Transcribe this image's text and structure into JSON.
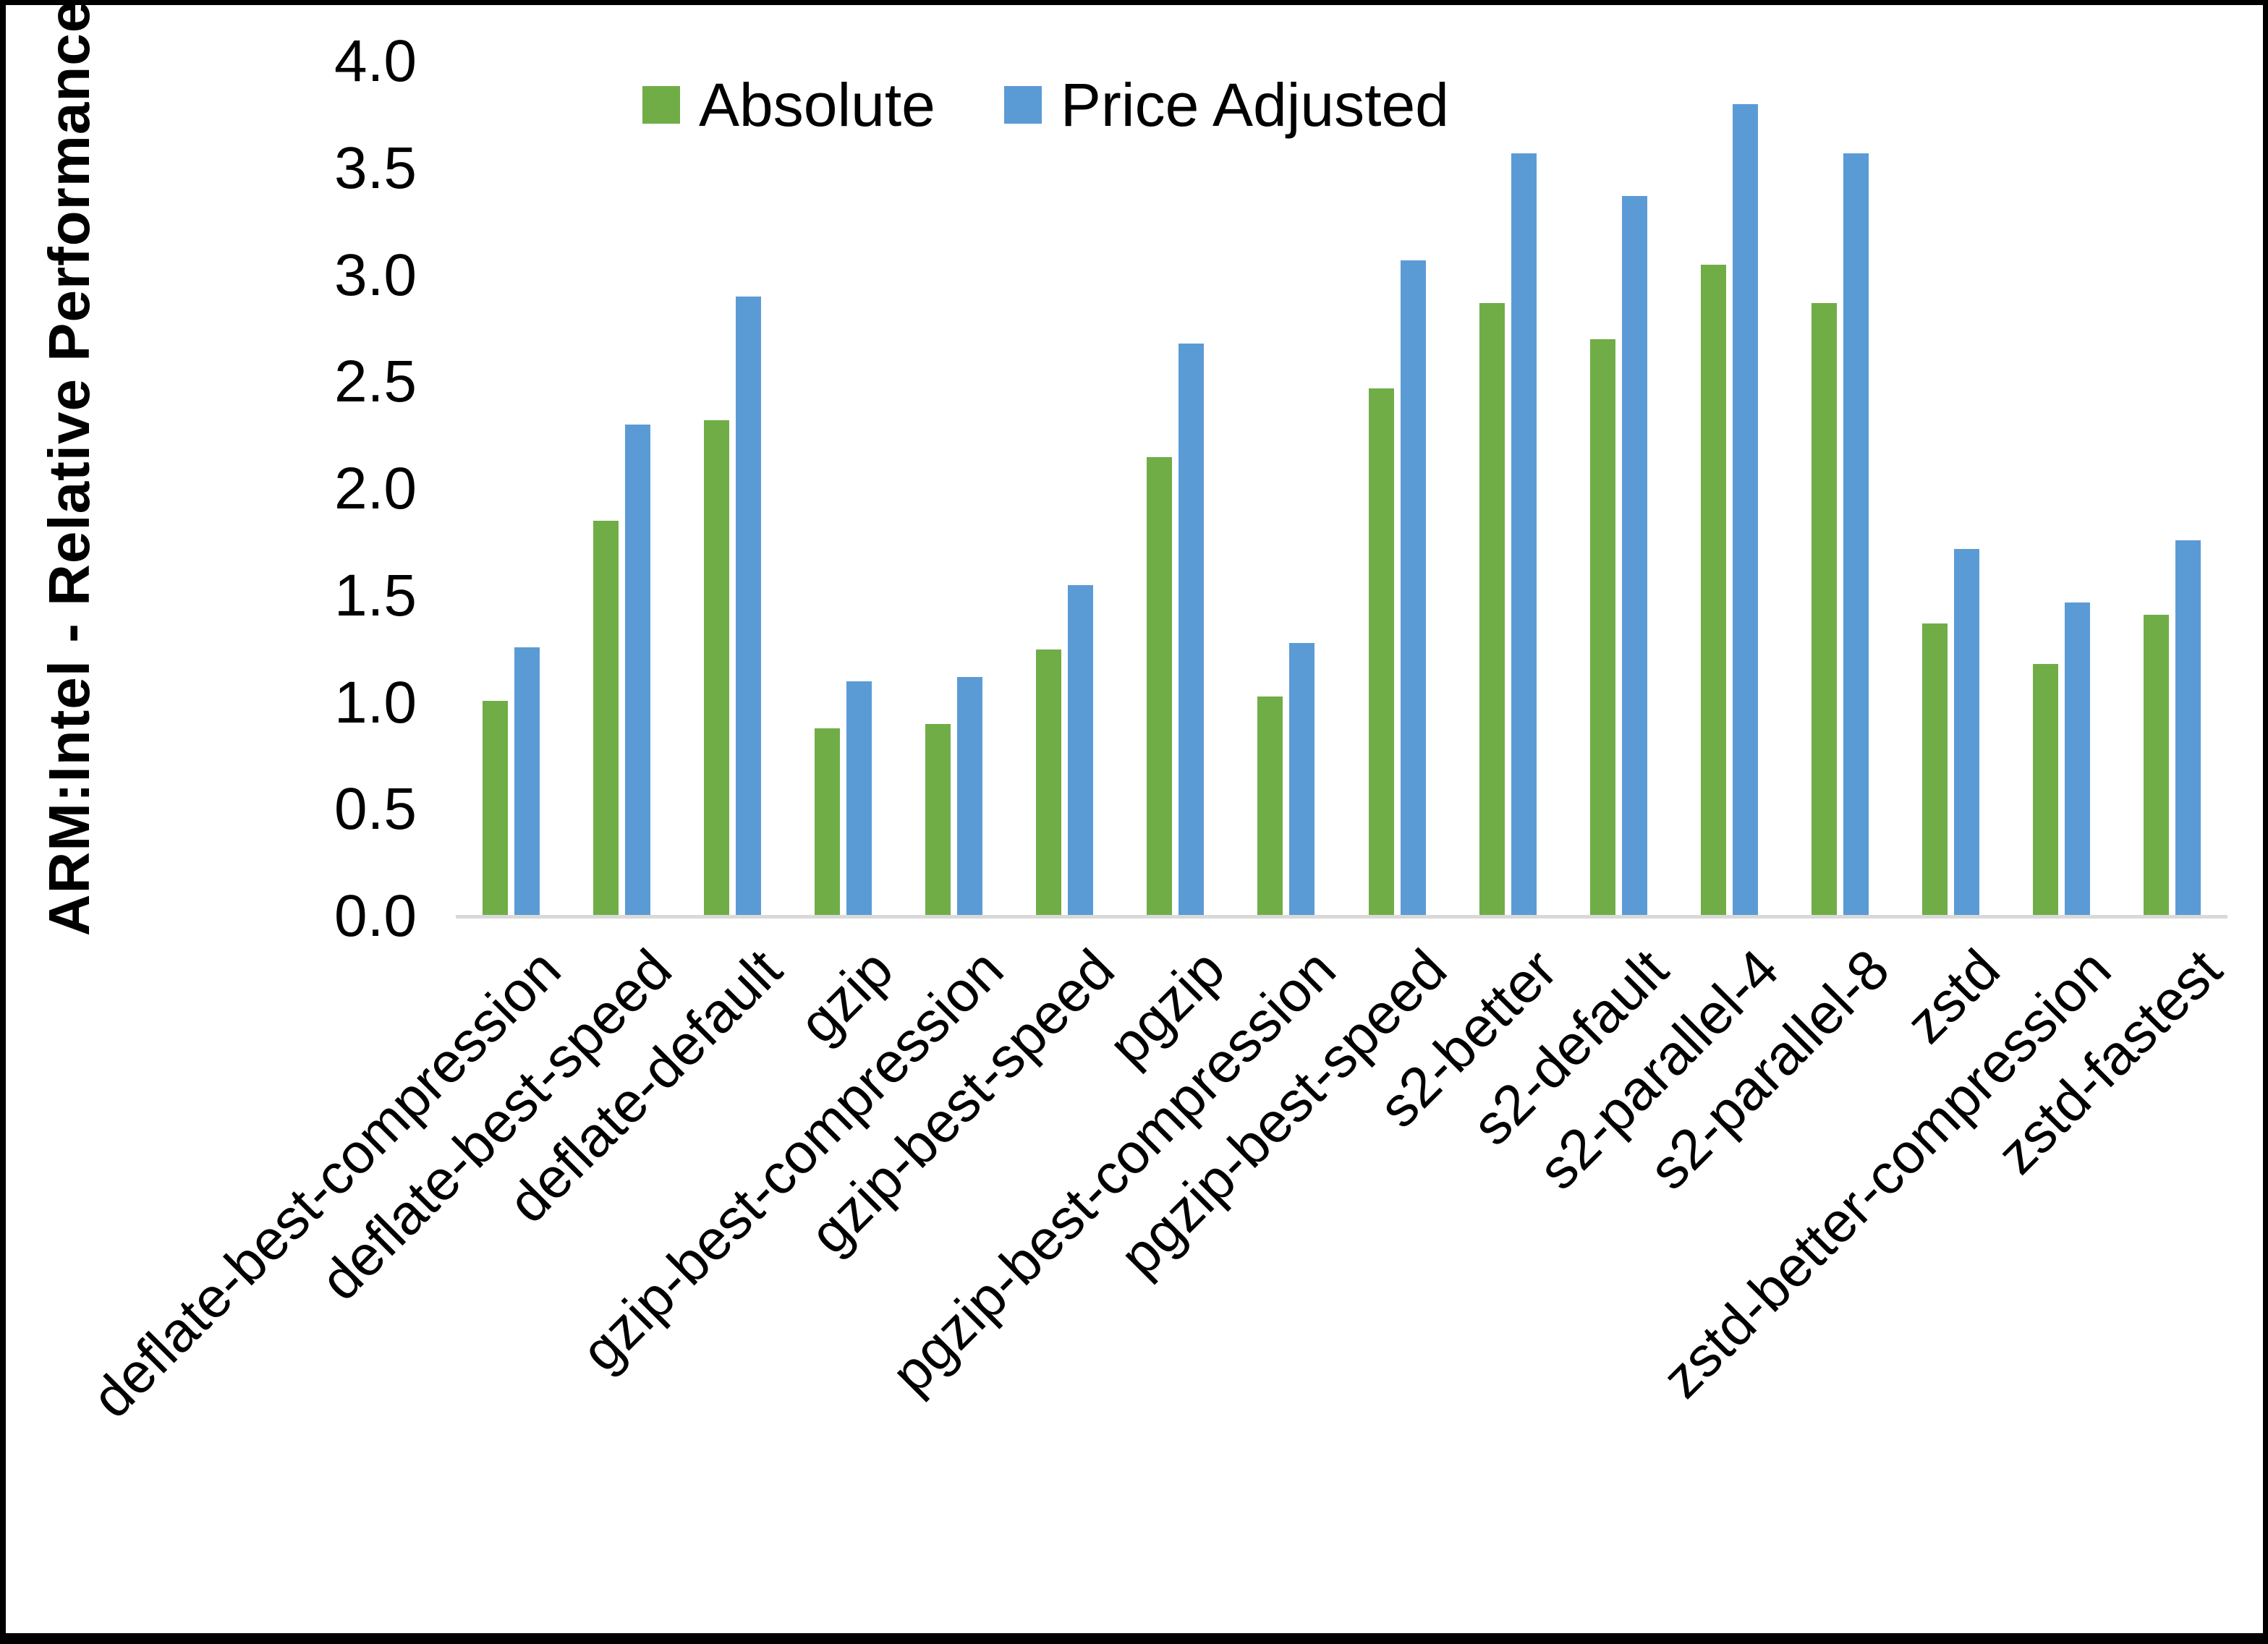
{
  "figure": {
    "y_axis_title": "ARM:Intel - Relative Performance"
  },
  "colors": {
    "absolute": "#70AD47",
    "price_adjusted": "#5B9BD5",
    "axis_line": "#D9D9D9",
    "text": "#000000",
    "frame": "#000000",
    "background": "#FFFFFF"
  },
  "chart_data": {
    "type": "bar",
    "title": "",
    "xlabel": "",
    "ylabel": "ARM:Intel - Relative Performance",
    "ylim": [
      0.0,
      4.0
    ],
    "ytick_step": 0.5,
    "yticks": [
      "0.0",
      "0.5",
      "1.0",
      "1.5",
      "2.0",
      "2.5",
      "3.0",
      "3.5",
      "4.0"
    ],
    "grid": false,
    "legend_position": "top-center",
    "categories": [
      "deflate-best-compression",
      "deflate-best-speed",
      "deflate-default",
      "gzip",
      "gzip-best-compression",
      "gzip-best-speed",
      "pgzip",
      "pgzip-best-compression",
      "pgzip-best-speed",
      "s2-better",
      "s2-default",
      "s2-parallel-4",
      "s2-parallel-8",
      "zstd",
      "zstd-better-compression",
      "zstd-fastest"
    ],
    "series": [
      {
        "name": "Absolute",
        "color": "#70AD47",
        "values": [
          1.01,
          1.85,
          2.32,
          0.88,
          0.9,
          1.25,
          2.15,
          1.03,
          2.47,
          2.87,
          2.7,
          3.05,
          2.87,
          1.37,
          1.18,
          1.41
        ]
      },
      {
        "name": "Price Adjusted",
        "color": "#5B9BD5",
        "values": [
          1.26,
          2.3,
          2.9,
          1.1,
          1.12,
          1.55,
          2.68,
          1.28,
          3.07,
          3.57,
          3.37,
          3.8,
          3.57,
          1.72,
          1.47,
          1.76
        ]
      }
    ]
  }
}
